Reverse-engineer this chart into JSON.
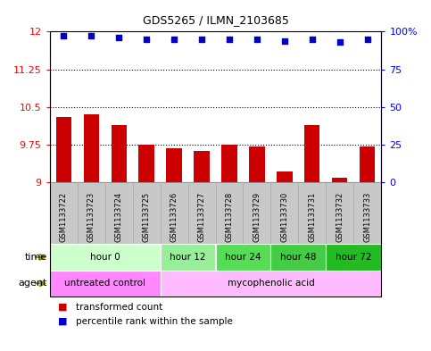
{
  "title": "GDS5265 / ILMN_2103685",
  "samples": [
    "GSM1133722",
    "GSM1133723",
    "GSM1133724",
    "GSM1133725",
    "GSM1133726",
    "GSM1133727",
    "GSM1133728",
    "GSM1133729",
    "GSM1133730",
    "GSM1133731",
    "GSM1133732",
    "GSM1133733"
  ],
  "bar_values": [
    10.3,
    10.35,
    10.15,
    9.75,
    9.68,
    9.62,
    9.75,
    9.72,
    9.22,
    10.15,
    9.1,
    9.72
  ],
  "percentile_values": [
    97,
    97,
    96,
    95,
    95,
    95,
    95,
    95,
    94,
    95,
    93,
    95
  ],
  "ylim": [
    9,
    12
  ],
  "y2lim": [
    0,
    100
  ],
  "yticks": [
    9,
    9.75,
    10.5,
    11.25,
    12
  ],
  "y2ticks": [
    0,
    25,
    50,
    75,
    100
  ],
  "dotted_lines": [
    9.75,
    10.5,
    11.25
  ],
  "bar_color": "#cc0000",
  "dot_color": "#0000cc",
  "bar_bottom": 9,
  "time_groups": [
    {
      "label": "hour 0",
      "start": 0,
      "end": 4,
      "color": "#ccffcc"
    },
    {
      "label": "hour 12",
      "start": 4,
      "end": 6,
      "color": "#99ee99"
    },
    {
      "label": "hour 24",
      "start": 6,
      "end": 8,
      "color": "#55dd55"
    },
    {
      "label": "hour 48",
      "start": 8,
      "end": 10,
      "color": "#44cc44"
    },
    {
      "label": "hour 72",
      "start": 10,
      "end": 12,
      "color": "#22bb22"
    }
  ],
  "agent_groups": [
    {
      "label": "untreated control",
      "start": 0,
      "end": 4,
      "color": "#ff88ff"
    },
    {
      "label": "mycophenolic acid",
      "start": 4,
      "end": 12,
      "color": "#ffbbff"
    }
  ],
  "legend_bar_label": "transformed count",
  "legend_dot_label": "percentile rank within the sample",
  "xlabel_time": "time",
  "xlabel_agent": "agent",
  "sample_bg_color": "#c8c8c8",
  "sample_border_color": "#aaaaaa",
  "plot_bg": "#ffffff",
  "arrow_color": "#888800"
}
